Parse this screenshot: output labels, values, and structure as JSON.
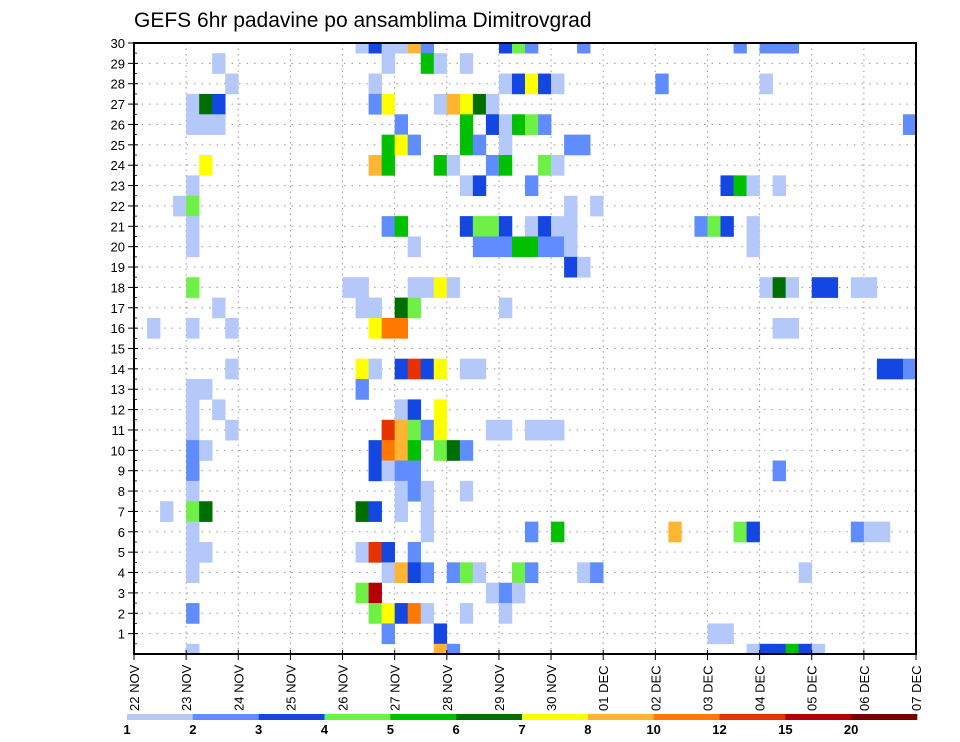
{
  "chart_data": {
    "type": "heatmap",
    "title": "GEFS 6hr padavine po ansamblima Dimitrovgrad",
    "xlabel": "",
    "ylabel": "",
    "x_unit": "6-hour steps from 22 NOV 00Z",
    "x_range_steps": [
      0,
      60
    ],
    "y_range": [
      0,
      30
    ],
    "grid": true,
    "y_tick_labels": [
      "1",
      "2",
      "3",
      "4",
      "5",
      "6",
      "7",
      "8",
      "9",
      "10",
      "11",
      "12",
      "13",
      "14",
      "15",
      "16",
      "17",
      "18",
      "19",
      "20",
      "21",
      "22",
      "23",
      "24",
      "25",
      "26",
      "27",
      "28",
      "29",
      "30"
    ],
    "x_tick_labels": [
      "22 NOV",
      "23 NOV",
      "24 NOV",
      "25 NOV",
      "26 NOV",
      "27 NOV",
      "28 NOV",
      "29 NOV",
      "30 NOV",
      "01 DEC",
      "02 DEC",
      "03 DEC",
      "04 DEC",
      "05 DEC",
      "06 DEC",
      "07 DEC"
    ],
    "colorbar": {
      "position": "bottom",
      "labels": [
        "1",
        "2",
        "3",
        "4",
        "5",
        "6",
        "7",
        "8",
        "10",
        "12",
        "15",
        "20"
      ],
      "colors": [
        "#b4c8fa",
        "#5f8cff",
        "#1446e1",
        "#6ef046",
        "#00c000",
        "#006e00",
        "#ffff00",
        "#ffb432",
        "#ff7800",
        "#e63200",
        "#b40000",
        "#780000"
      ]
    },
    "level_legend": "cell value = colour class index 1..12 (1: 1-2, 2: 2-3, 3: 3-4, 4: 4-5, 5: 5-6, 6: 6-7, 7: 7-8, 8: 8-10, 9: 10-12, 10: 12-15, 11: 15-20, 12: >20)",
    "rows": [
      {
        "member": 30,
        "cells": [
          [
            17,
            1
          ],
          [
            18,
            3
          ],
          [
            19,
            1
          ],
          [
            20,
            1
          ],
          [
            21,
            8
          ],
          [
            22,
            2
          ],
          [
            28,
            3
          ],
          [
            29,
            4
          ],
          [
            30,
            2
          ],
          [
            34,
            2
          ],
          [
            46,
            2
          ],
          [
            48,
            2
          ],
          [
            49,
            2
          ],
          [
            50,
            2
          ]
        ]
      },
      {
        "member": 29,
        "cells": [
          [
            6,
            1
          ],
          [
            19,
            1
          ],
          [
            22,
            5
          ],
          [
            23,
            1
          ],
          [
            25,
            1
          ]
        ]
      },
      {
        "member": 28,
        "cells": [
          [
            7,
            1
          ],
          [
            18,
            1
          ],
          [
            28,
            1
          ],
          [
            29,
            3
          ],
          [
            30,
            7
          ],
          [
            31,
            3
          ],
          [
            32,
            1
          ],
          [
            40,
            2
          ],
          [
            48,
            1
          ]
        ]
      },
      {
        "member": 27,
        "cells": [
          [
            4,
            1
          ],
          [
            5,
            6
          ],
          [
            6,
            3
          ],
          [
            18,
            2
          ],
          [
            19,
            7
          ],
          [
            23,
            1
          ],
          [
            24,
            8
          ],
          [
            25,
            7
          ],
          [
            26,
            6
          ],
          [
            27,
            1
          ]
        ]
      },
      {
        "member": 26,
        "cells": [
          [
            4,
            1
          ],
          [
            5,
            1
          ],
          [
            6,
            1
          ],
          [
            20,
            2
          ],
          [
            25,
            5
          ],
          [
            27,
            3
          ],
          [
            28,
            1
          ],
          [
            29,
            5
          ],
          [
            30,
            4
          ],
          [
            31,
            2
          ],
          [
            59,
            2
          ]
        ]
      },
      {
        "member": 25,
        "cells": [
          [
            19,
            5
          ],
          [
            20,
            7
          ],
          [
            21,
            2
          ],
          [
            25,
            5
          ],
          [
            26,
            2
          ],
          [
            28,
            1
          ],
          [
            33,
            2
          ],
          [
            34,
            2
          ]
        ]
      },
      {
        "member": 24,
        "cells": [
          [
            5,
            7
          ],
          [
            18,
            8
          ],
          [
            19,
            5
          ],
          [
            23,
            5
          ],
          [
            24,
            1
          ],
          [
            27,
            2
          ],
          [
            28,
            5
          ],
          [
            31,
            4
          ],
          [
            32,
            1
          ]
        ]
      },
      {
        "member": 23,
        "cells": [
          [
            4,
            1
          ],
          [
            25,
            1
          ],
          [
            26,
            3
          ],
          [
            30,
            2
          ],
          [
            45,
            3
          ],
          [
            46,
            5
          ],
          [
            47,
            1
          ],
          [
            49,
            1
          ]
        ]
      },
      {
        "member": 22,
        "cells": [
          [
            3,
            1
          ],
          [
            4,
            4
          ],
          [
            33,
            1
          ],
          [
            35,
            1
          ]
        ]
      },
      {
        "member": 21,
        "cells": [
          [
            4,
            1
          ],
          [
            19,
            2
          ],
          [
            20,
            5
          ],
          [
            25,
            3
          ],
          [
            26,
            4
          ],
          [
            27,
            4
          ],
          [
            28,
            3
          ],
          [
            30,
            1
          ],
          [
            31,
            3
          ],
          [
            32,
            1
          ],
          [
            33,
            1
          ],
          [
            43,
            2
          ],
          [
            44,
            4
          ],
          [
            45,
            3
          ],
          [
            47,
            1
          ]
        ]
      },
      {
        "member": 20,
        "cells": [
          [
            4,
            1
          ],
          [
            21,
            1
          ],
          [
            26,
            2
          ],
          [
            27,
            2
          ],
          [
            28,
            2
          ],
          [
            29,
            5
          ],
          [
            30,
            5
          ],
          [
            31,
            2
          ],
          [
            32,
            2
          ],
          [
            33,
            1
          ],
          [
            47,
            1
          ]
        ]
      },
      {
        "member": 19,
        "cells": [
          [
            33,
            3
          ],
          [
            34,
            1
          ]
        ]
      },
      {
        "member": 18,
        "cells": [
          [
            4,
            4
          ],
          [
            16,
            1
          ],
          [
            17,
            1
          ],
          [
            21,
            1
          ],
          [
            22,
            1
          ],
          [
            23,
            7
          ],
          [
            24,
            1
          ],
          [
            48,
            1
          ],
          [
            49,
            6
          ],
          [
            50,
            1
          ],
          [
            52,
            3
          ],
          [
            53,
            3
          ],
          [
            55,
            1
          ],
          [
            56,
            1
          ]
        ]
      },
      {
        "member": 17,
        "cells": [
          [
            6,
            1
          ],
          [
            17,
            1
          ],
          [
            18,
            1
          ],
          [
            20,
            6
          ],
          [
            21,
            4
          ],
          [
            28,
            1
          ]
        ]
      },
      {
        "member": 16,
        "cells": [
          [
            1,
            1
          ],
          [
            4,
            1
          ],
          [
            7,
            1
          ],
          [
            18,
            7
          ],
          [
            19,
            9
          ],
          [
            20,
            9
          ],
          [
            49,
            1
          ],
          [
            50,
            1
          ]
        ]
      },
      {
        "member": 15,
        "cells": []
      },
      {
        "member": 14,
        "cells": [
          [
            7,
            1
          ],
          [
            17,
            7
          ],
          [
            18,
            1
          ],
          [
            20,
            3
          ],
          [
            21,
            10
          ],
          [
            22,
            3
          ],
          [
            23,
            7
          ],
          [
            25,
            1
          ],
          [
            26,
            1
          ],
          [
            57,
            3
          ],
          [
            58,
            3
          ],
          [
            59,
            2
          ]
        ]
      },
      {
        "member": 13,
        "cells": [
          [
            4,
            1
          ],
          [
            5,
            1
          ],
          [
            17,
            2
          ]
        ]
      },
      {
        "member": 12,
        "cells": [
          [
            4,
            1
          ],
          [
            6,
            1
          ],
          [
            20,
            1
          ],
          [
            21,
            3
          ],
          [
            23,
            7
          ]
        ]
      },
      {
        "member": 11,
        "cells": [
          [
            4,
            1
          ],
          [
            7,
            1
          ],
          [
            19,
            10
          ],
          [
            20,
            8
          ],
          [
            21,
            4
          ],
          [
            22,
            2
          ],
          [
            23,
            7
          ],
          [
            27,
            1
          ],
          [
            28,
            1
          ],
          [
            30,
            1
          ],
          [
            31,
            1
          ],
          [
            32,
            1
          ]
        ]
      },
      {
        "member": 10,
        "cells": [
          [
            4,
            2
          ],
          [
            5,
            1
          ],
          [
            18,
            3
          ],
          [
            19,
            9
          ],
          [
            20,
            8
          ],
          [
            21,
            5
          ],
          [
            23,
            4
          ],
          [
            24,
            6
          ],
          [
            25,
            2
          ]
        ]
      },
      {
        "member": 9,
        "cells": [
          [
            4,
            2
          ],
          [
            18,
            3
          ],
          [
            19,
            1
          ],
          [
            20,
            2
          ],
          [
            21,
            2
          ],
          [
            49,
            2
          ]
        ]
      },
      {
        "member": 8,
        "cells": [
          [
            4,
            1
          ],
          [
            20,
            1
          ],
          [
            21,
            2
          ],
          [
            22,
            1
          ],
          [
            25,
            1
          ]
        ]
      },
      {
        "member": 7,
        "cells": [
          [
            2,
            1
          ],
          [
            4,
            4
          ],
          [
            5,
            6
          ],
          [
            17,
            6
          ],
          [
            18,
            3
          ],
          [
            20,
            1
          ],
          [
            22,
            1
          ]
        ]
      },
      {
        "member": 6,
        "cells": [
          [
            4,
            1
          ],
          [
            22,
            1
          ],
          [
            30,
            2
          ],
          [
            32,
            5
          ],
          [
            41,
            8
          ],
          [
            46,
            4
          ],
          [
            47,
            3
          ],
          [
            55,
            2
          ],
          [
            56,
            1
          ],
          [
            57,
            1
          ]
        ]
      },
      {
        "member": 5,
        "cells": [
          [
            4,
            1
          ],
          [
            5,
            1
          ],
          [
            17,
            1
          ],
          [
            18,
            10
          ],
          [
            19,
            3
          ],
          [
            21,
            2
          ]
        ]
      },
      {
        "member": 4,
        "cells": [
          [
            4,
            1
          ],
          [
            19,
            1
          ],
          [
            20,
            8
          ],
          [
            21,
            3
          ],
          [
            22,
            2
          ],
          [
            24,
            2
          ],
          [
            25,
            4
          ],
          [
            26,
            1
          ],
          [
            29,
            4
          ],
          [
            30,
            2
          ],
          [
            34,
            1
          ],
          [
            35,
            2
          ],
          [
            51,
            1
          ]
        ]
      },
      {
        "member": 3,
        "cells": [
          [
            17,
            4
          ],
          [
            18,
            11
          ],
          [
            27,
            1
          ],
          [
            28,
            2
          ],
          [
            29,
            1
          ]
        ]
      },
      {
        "member": 2,
        "cells": [
          [
            4,
            2
          ],
          [
            18,
            4
          ],
          [
            19,
            7
          ],
          [
            20,
            3
          ],
          [
            21,
            9
          ],
          [
            22,
            1
          ],
          [
            25,
            1
          ],
          [
            28,
            1
          ]
        ]
      },
      {
        "member": 1,
        "cells": [
          [
            19,
            2
          ],
          [
            23,
            3
          ],
          [
            44,
            1
          ],
          [
            45,
            1
          ]
        ]
      },
      {
        "member": 0,
        "cells": [
          [
            4,
            1
          ],
          [
            23,
            8
          ],
          [
            24,
            2
          ],
          [
            47,
            1
          ],
          [
            48,
            3
          ],
          [
            49,
            3
          ],
          [
            50,
            5
          ],
          [
            51,
            3
          ],
          [
            52,
            1
          ]
        ]
      }
    ]
  }
}
